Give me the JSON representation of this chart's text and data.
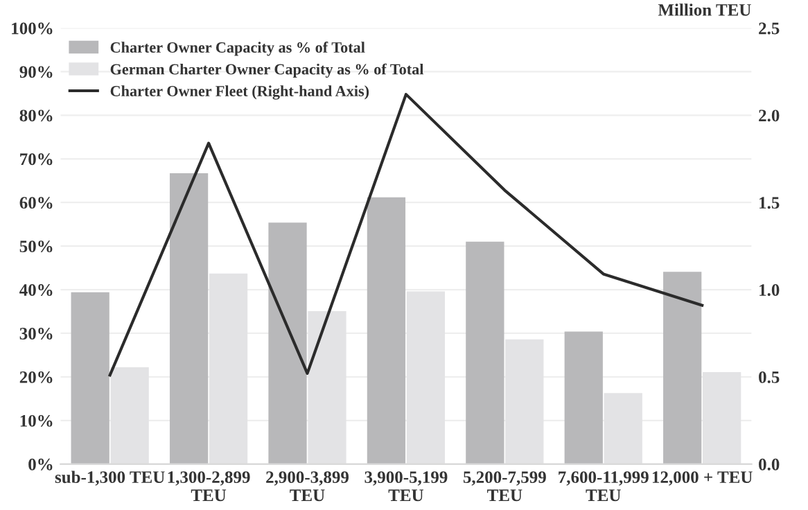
{
  "chart_data": {
    "type": "bar",
    "categories": [
      "sub-1,300 TEU",
      "1,300-2,899\nTEU",
      "2,900-3,899\nTEU",
      "3,900-5,199\nTEU",
      "5,200-7,599\nTEU",
      "7,600-11,999\nTEU",
      "12,000 + TEU"
    ],
    "series": [
      {
        "name": "Charter Owner Capacity as % of Total",
        "color": "#b8b8ba",
        "values": [
          39.4,
          66.7,
          55.4,
          61.2,
          51.0,
          30.4,
          44.1
        ]
      },
      {
        "name": "German Charter Owner Capacity as % of Total",
        "color": "#e3e3e5",
        "values": [
          22.2,
          43.7,
          35.1,
          39.6,
          28.6,
          16.3,
          21.1
        ]
      },
      {
        "name": "Charter Owner Fleet (Right-hand Axis)",
        "type": "line",
        "axis": "y2",
        "color": "#2b2b2b",
        "values": [
          0.51,
          1.84,
          0.52,
          2.12,
          1.57,
          1.09,
          0.91
        ]
      }
    ],
    "ylim": [
      0,
      100
    ],
    "yticks": [
      {
        "value": 0,
        "label": "0%"
      },
      {
        "value": 10,
        "label": "10%"
      },
      {
        "value": 20,
        "label": "20%"
      },
      {
        "value": 30,
        "label": "30%"
      },
      {
        "value": 40,
        "label": "40%"
      },
      {
        "value": 50,
        "label": "50%"
      },
      {
        "value": 60,
        "label": "60%"
      },
      {
        "value": 70,
        "label": "70%"
      },
      {
        "value": 80,
        "label": "80%"
      },
      {
        "value": 90,
        "label": "90%"
      },
      {
        "value": 100,
        "label": "100%"
      }
    ],
    "y2lim": [
      0,
      2.5
    ],
    "y2ticks": [
      {
        "value": 0,
        "label": "0.0"
      },
      {
        "value": 0.5,
        "label": "0.5"
      },
      {
        "value": 1,
        "label": "1.0"
      },
      {
        "value": 1.5,
        "label": "1.5"
      },
      {
        "value": 2,
        "label": "2.0"
      },
      {
        "value": 2.5,
        "label": "2.5"
      }
    ],
    "y2label": "Million TEU",
    "grid": "y",
    "legend": "top left",
    "marker": "none",
    "line_style": "solid"
  }
}
